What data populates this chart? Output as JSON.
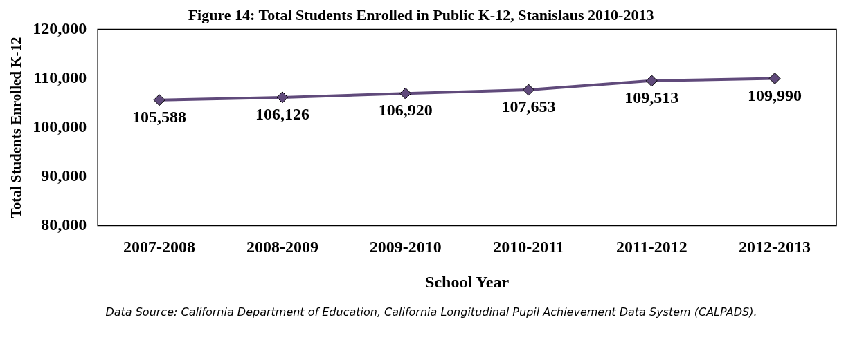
{
  "chart_data": {
    "type": "line",
    "title": "Figure 14: Total Students Enrolled in Public K-12, Stanislaus 2010-2013",
    "xlabel": "School Year",
    "ylabel": "Total Students Enrolled K-12",
    "categories": [
      "2007-2008",
      "2008-2009",
      "2009-2010",
      "2010-2011",
      "2011-2012",
      "2012-2013"
    ],
    "series": [
      {
        "color": "#604a7b",
        "values": [
          105588,
          106126,
          106920,
          107653,
          109513,
          109990
        ],
        "value_labels": [
          "105,588",
          "106,126",
          "106,920",
          "107,653",
          "109,513",
          "109,990"
        ]
      }
    ],
    "ylim": [
      80000,
      120000
    ],
    "yticks": [
      {
        "value": 80000,
        "label": "80,000"
      },
      {
        "value": 90000,
        "label": "90,000"
      },
      {
        "value": 100000,
        "label": "100,000"
      },
      {
        "value": 110000,
        "label": "110,000"
      },
      {
        "value": 120000,
        "label": "120,000"
      }
    ],
    "grid": false,
    "legend": false,
    "marker": "diamond",
    "line_style": "solid",
    "annotations": [
      "Data Source: California Department of Education, California Longitudinal Pupil Achievement Data System (CALPADS)."
    ]
  }
}
